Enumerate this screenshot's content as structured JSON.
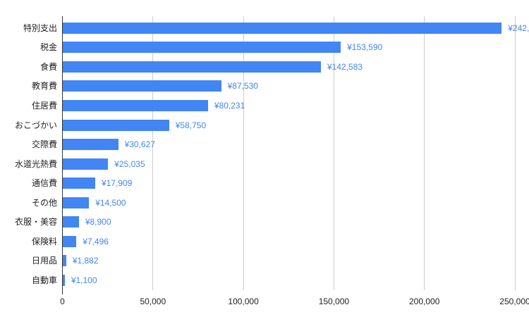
{
  "chart_data": {
    "type": "bar",
    "orientation": "horizontal",
    "title": "",
    "xlabel": "",
    "ylabel": "",
    "legend": "none",
    "grid": "vertical",
    "xlim": [
      0,
      250000
    ],
    "categories": [
      "特別支出",
      "税金",
      "食費",
      "教育費",
      "住居費",
      "おこづかい",
      "交際費",
      "水道光熱費",
      "通信費",
      "その他",
      "衣服・美容",
      "保険料",
      "日用品",
      "自動車"
    ],
    "values": [
      242500,
      153590,
      142583,
      87530,
      80231,
      58750,
      30627,
      25035,
      17909,
      14500,
      8900,
      7496,
      1882,
      1100
    ],
    "value_labels": [
      "¥242,",
      "¥153,590",
      "¥142,583",
      "¥87,530",
      "¥80,231",
      "¥58,750",
      "¥30,627",
      "¥25,035",
      "¥17,909",
      "¥14,500",
      "¥8,900",
      "¥7,496",
      "¥1,882",
      "¥1,100"
    ],
    "x_tick_values": [
      0,
      50000,
      100000,
      150000,
      200000,
      250000
    ],
    "x_tick_labels": [
      "0",
      "50,000",
      "100,000",
      "150,000",
      "200,000",
      "250,000"
    ],
    "colors": {
      "bar": "#4285f4",
      "value_label": "#4285f4",
      "category_label": "#222222",
      "tick_label": "#222222",
      "gridline": "#cccccc",
      "baseline": "#333333",
      "background": "#ffffff"
    }
  }
}
